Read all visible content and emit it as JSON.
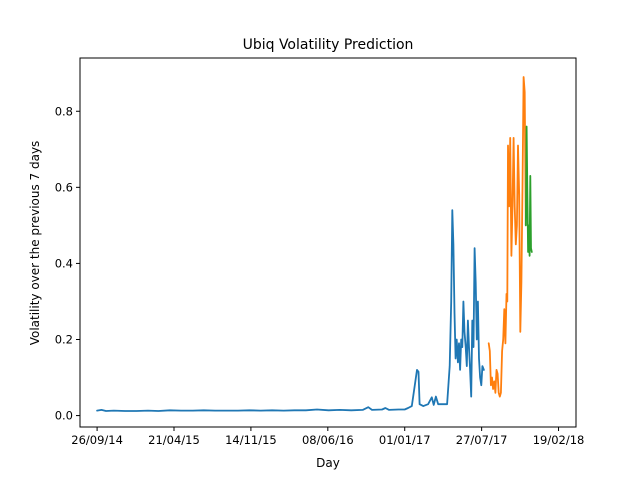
{
  "chart_data": {
    "type": "line",
    "title": "Ubiq Volatility Prediction",
    "xlabel": "Day",
    "ylabel": "Volatility over the previous 7 days",
    "grid": false,
    "legend": "none",
    "xlim": [
      "2014-08-11",
      "2018-04-07"
    ],
    "ylim": [
      -0.03,
      0.94
    ],
    "x_ticks": [
      {
        "date": "2014-09-26",
        "label": "26/09/14"
      },
      {
        "date": "2015-04-21",
        "label": "21/04/15"
      },
      {
        "date": "2015-11-14",
        "label": "14/11/15"
      },
      {
        "date": "2016-06-08",
        "label": "08/06/16"
      },
      {
        "date": "2017-01-01",
        "label": "01/01/17"
      },
      {
        "date": "2017-07-27",
        "label": "27/07/17"
      },
      {
        "date": "2018-02-19",
        "label": "19/02/18"
      }
    ],
    "y_ticks": [
      {
        "value": 0.0,
        "label": "0.0"
      },
      {
        "value": 0.2,
        "label": "0.2"
      },
      {
        "value": 0.4,
        "label": "0.4"
      },
      {
        "value": 0.6,
        "label": "0.6"
      },
      {
        "value": 0.8,
        "label": "0.8"
      }
    ],
    "series": [
      {
        "color": "#1f77b4",
        "points": [
          [
            "2014-09-26",
            0.013
          ],
          [
            "2014-10-08",
            0.015
          ],
          [
            "2014-10-20",
            0.012
          ],
          [
            "2014-11-10",
            0.013
          ],
          [
            "2014-12-10",
            0.012
          ],
          [
            "2015-01-10",
            0.012
          ],
          [
            "2015-02-10",
            0.013
          ],
          [
            "2015-03-10",
            0.012
          ],
          [
            "2015-04-10",
            0.014
          ],
          [
            "2015-05-10",
            0.013
          ],
          [
            "2015-06-10",
            0.013
          ],
          [
            "2015-07-10",
            0.014
          ],
          [
            "2015-08-10",
            0.013
          ],
          [
            "2015-09-10",
            0.013
          ],
          [
            "2015-10-10",
            0.013
          ],
          [
            "2015-11-10",
            0.014
          ],
          [
            "2015-12-10",
            0.013
          ],
          [
            "2016-01-10",
            0.014
          ],
          [
            "2016-02-10",
            0.013
          ],
          [
            "2016-03-10",
            0.014
          ],
          [
            "2016-04-10",
            0.014
          ],
          [
            "2016-05-10",
            0.016
          ],
          [
            "2016-06-10",
            0.014
          ],
          [
            "2016-07-10",
            0.015
          ],
          [
            "2016-08-10",
            0.014
          ],
          [
            "2016-09-10",
            0.015
          ],
          [
            "2016-09-25",
            0.022
          ],
          [
            "2016-10-05",
            0.015
          ],
          [
            "2016-11-01",
            0.016
          ],
          [
            "2016-11-10",
            0.02
          ],
          [
            "2016-11-20",
            0.015
          ],
          [
            "2016-12-15",
            0.016
          ],
          [
            "2017-01-01",
            0.016
          ],
          [
            "2017-01-10",
            0.02
          ],
          [
            "2017-01-20",
            0.025
          ],
          [
            "2017-01-28",
            0.08
          ],
          [
            "2017-02-03",
            0.12
          ],
          [
            "2017-02-07",
            0.115
          ],
          [
            "2017-02-10",
            0.03
          ],
          [
            "2017-02-20",
            0.025
          ],
          [
            "2017-03-05",
            0.03
          ],
          [
            "2017-03-15",
            0.048
          ],
          [
            "2017-03-20",
            0.028
          ],
          [
            "2017-03-26",
            0.05
          ],
          [
            "2017-04-01",
            0.03
          ],
          [
            "2017-04-10",
            0.03
          ],
          [
            "2017-04-25",
            0.03
          ],
          [
            "2017-05-02",
            0.13
          ],
          [
            "2017-05-06",
            0.3
          ],
          [
            "2017-05-09",
            0.54
          ],
          [
            "2017-05-12",
            0.45
          ],
          [
            "2017-05-15",
            0.27
          ],
          [
            "2017-05-18",
            0.15
          ],
          [
            "2017-05-21",
            0.2
          ],
          [
            "2017-05-24",
            0.14
          ],
          [
            "2017-05-27",
            0.19
          ],
          [
            "2017-05-30",
            0.12
          ],
          [
            "2017-06-02",
            0.2
          ],
          [
            "2017-06-05",
            0.18
          ],
          [
            "2017-06-08",
            0.3
          ],
          [
            "2017-06-11",
            0.22
          ],
          [
            "2017-06-14",
            0.18
          ],
          [
            "2017-06-17",
            0.13
          ],
          [
            "2017-06-20",
            0.25
          ],
          [
            "2017-06-23",
            0.18
          ],
          [
            "2017-06-26",
            0.12
          ],
          [
            "2017-06-29",
            0.05
          ],
          [
            "2017-07-02",
            0.25
          ],
          [
            "2017-07-05",
            0.18
          ],
          [
            "2017-07-08",
            0.44
          ],
          [
            "2017-07-11",
            0.35
          ],
          [
            "2017-07-14",
            0.2
          ],
          [
            "2017-07-17",
            0.3
          ],
          [
            "2017-07-20",
            0.15
          ],
          [
            "2017-07-23",
            0.1
          ],
          [
            "2017-07-26",
            0.08
          ],
          [
            "2017-07-29",
            0.13
          ],
          [
            "2017-08-02",
            0.12
          ]
        ]
      },
      {
        "color": "#ff7f0e",
        "points": [
          [
            "2017-08-15",
            0.19
          ],
          [
            "2017-08-18",
            0.17
          ],
          [
            "2017-08-21",
            0.08
          ],
          [
            "2017-08-24",
            0.1
          ],
          [
            "2017-08-27",
            0.07
          ],
          [
            "2017-08-30",
            0.09
          ],
          [
            "2017-09-02",
            0.06
          ],
          [
            "2017-09-05",
            0.12
          ],
          [
            "2017-09-08",
            0.11
          ],
          [
            "2017-09-11",
            0.06
          ],
          [
            "2017-09-14",
            0.05
          ],
          [
            "2017-09-17",
            0.06
          ],
          [
            "2017-09-20",
            0.17
          ],
          [
            "2017-09-23",
            0.2
          ],
          [
            "2017-09-26",
            0.28
          ],
          [
            "2017-09-29",
            0.19
          ],
          [
            "2017-10-02",
            0.32
          ],
          [
            "2017-10-04",
            0.3
          ],
          [
            "2017-10-06",
            0.71
          ],
          [
            "2017-10-09",
            0.55
          ],
          [
            "2017-10-12",
            0.73
          ],
          [
            "2017-10-15",
            0.42
          ],
          [
            "2017-10-18",
            0.55
          ],
          [
            "2017-10-21",
            0.73
          ],
          [
            "2017-10-24",
            0.55
          ],
          [
            "2017-10-27",
            0.45
          ],
          [
            "2017-10-30",
            0.5
          ],
          [
            "2017-11-02",
            0.71
          ],
          [
            "2017-11-05",
            0.58
          ],
          [
            "2017-11-08",
            0.22
          ],
          [
            "2017-11-11",
            0.35
          ],
          [
            "2017-11-14",
            0.6
          ],
          [
            "2017-11-17",
            0.89
          ],
          [
            "2017-11-20",
            0.85
          ],
          [
            "2017-11-23",
            0.5
          ]
        ]
      },
      {
        "color": "#2ca02c",
        "points": [
          [
            "2017-11-23",
            0.5
          ],
          [
            "2017-11-25",
            0.76
          ],
          [
            "2017-11-27",
            0.6
          ],
          [
            "2017-11-29",
            0.43
          ],
          [
            "2017-12-01",
            0.5
          ],
          [
            "2017-12-03",
            0.42
          ],
          [
            "2017-12-05",
            0.63
          ],
          [
            "2017-12-07",
            0.44
          ],
          [
            "2017-12-09",
            0.43
          ]
        ]
      }
    ]
  }
}
